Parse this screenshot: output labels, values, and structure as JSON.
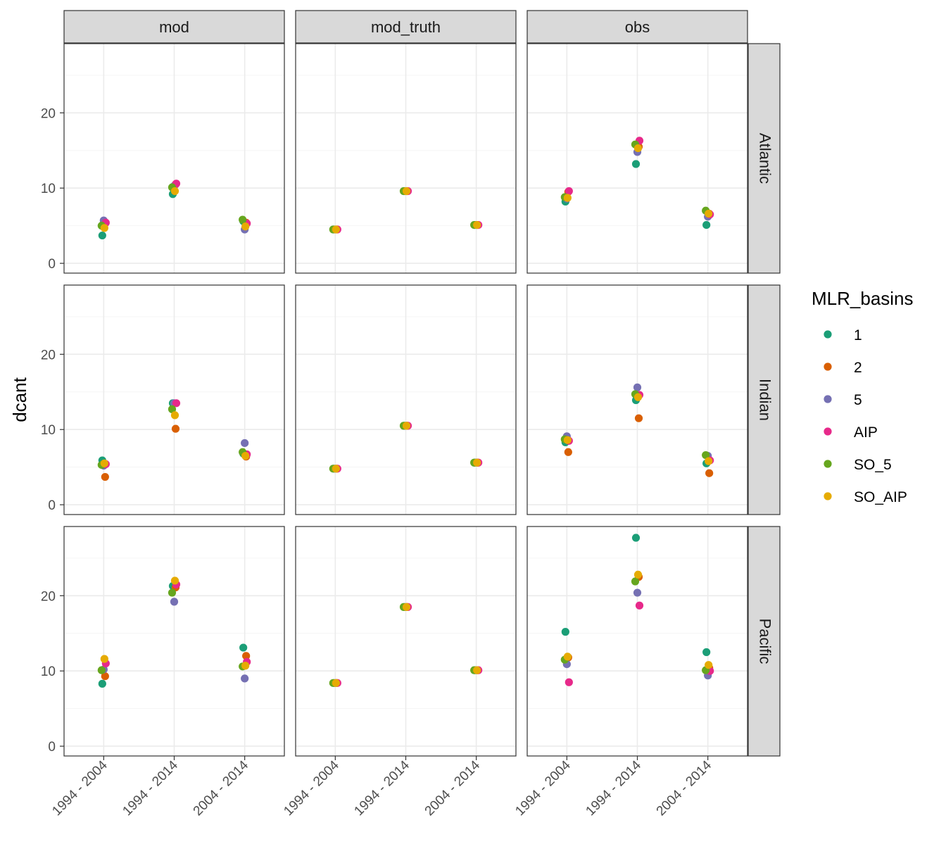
{
  "colors": {
    "1": "#1b9e77",
    "2": "#d95f02",
    "5": "#7570b3",
    "AIP": "#e7298a",
    "SO_5": "#66a61e",
    "SO_AIP": "#e6ab02",
    "strip_fill": "#d9d9d9",
    "panel_border": "#333333",
    "grid_major": "#ebebeb",
    "grid_minor": "#f5f5f5"
  },
  "chart_data": {
    "type": "scatter",
    "title": "",
    "xlabel": "",
    "ylabel": "dcant",
    "ylim": [
      -1.3,
      29.2
    ],
    "yticks": [
      0,
      10,
      20
    ],
    "y_minor_ticks": [
      5,
      15,
      25
    ],
    "categories": [
      "1994 - 2004",
      "1994 - 2014",
      "2004 - 2014"
    ],
    "columns": [
      "mod",
      "mod_truth",
      "obs"
    ],
    "rows": [
      "Atlantic",
      "Indian",
      "Pacific"
    ],
    "grid": true,
    "legend": {
      "title": "MLR_basins",
      "position": "right",
      "entries": [
        "1",
        "2",
        "5",
        "AIP",
        "SO_5",
        "SO_AIP"
      ]
    },
    "series_names": [
      "1",
      "2",
      "5",
      "AIP",
      "SO_5",
      "SO_AIP"
    ],
    "panels": {
      "Atlantic": {
        "mod": {
          "1": [
            3.7,
            9.2,
            5.6
          ],
          "2": [
            5.3,
            10.5,
            5.4
          ],
          "5": [
            5.7,
            10.3,
            4.5
          ],
          "AIP": [
            5.4,
            10.6,
            5.3
          ],
          "SO_5": [
            5.0,
            10.1,
            5.8
          ],
          "SO_AIP": [
            4.7,
            9.6,
            4.9
          ]
        },
        "mod_truth": {
          "1": [
            4.5,
            9.6,
            5.1
          ],
          "2": [
            4.5,
            9.6,
            5.1
          ],
          "5": [
            4.5,
            9.6,
            5.1
          ],
          "AIP": [
            4.5,
            9.6,
            5.1
          ],
          "SO_5": [
            4.5,
            9.6,
            5.1
          ],
          "SO_AIP": [
            4.5,
            9.6,
            5.1
          ]
        },
        "obs": {
          "1": [
            8.2,
            13.2,
            5.1
          ],
          "2": [
            9.5,
            15.5,
            6.6
          ],
          "5": [
            8.6,
            14.8,
            6.2
          ],
          "AIP": [
            9.6,
            16.3,
            6.5
          ],
          "SO_5": [
            8.8,
            15.8,
            7.0
          ],
          "SO_AIP": [
            8.7,
            15.3,
            6.6
          ]
        }
      },
      "Indian": {
        "mod": {
          "1": [
            5.9,
            13.5,
            6.8
          ],
          "2": [
            3.7,
            10.1,
            6.4
          ],
          "5": [
            5.2,
            13.5,
            8.2
          ],
          "AIP": [
            5.4,
            13.5,
            6.7
          ],
          "SO_5": [
            5.3,
            12.7,
            7.0
          ],
          "SO_AIP": [
            5.5,
            11.9,
            6.5
          ]
        },
        "mod_truth": {
          "1": [
            4.8,
            10.5,
            5.6
          ],
          "2": [
            4.8,
            10.5,
            5.6
          ],
          "5": [
            4.8,
            10.5,
            5.6
          ],
          "AIP": [
            4.8,
            10.5,
            5.6
          ],
          "SO_5": [
            4.8,
            10.5,
            5.6
          ],
          "SO_AIP": [
            4.8,
            10.5,
            5.6
          ]
        },
        "obs": {
          "1": [
            8.3,
            13.9,
            5.5
          ],
          "2": [
            7.0,
            11.5,
            4.2
          ],
          "5": [
            9.1,
            15.6,
            6.5
          ],
          "AIP": [
            8.5,
            14.6,
            5.9
          ],
          "SO_5": [
            8.7,
            14.7,
            6.6
          ],
          "SO_AIP": [
            8.6,
            14.3,
            5.8
          ]
        }
      },
      "Pacific": {
        "mod": {
          "1": [
            8.3,
            21.3,
            13.1
          ],
          "2": [
            9.3,
            21.1,
            12.0
          ],
          "5": [
            10.2,
            19.2,
            9.0
          ],
          "AIP": [
            11.0,
            21.5,
            11.2
          ],
          "SO_5": [
            10.1,
            20.4,
            10.6
          ],
          "SO_AIP": [
            11.6,
            22.0,
            10.7
          ]
        },
        "mod_truth": {
          "1": [
            8.4,
            18.5,
            10.1
          ],
          "2": [
            8.4,
            18.5,
            10.1
          ],
          "5": [
            8.4,
            18.5,
            10.1
          ],
          "AIP": [
            8.4,
            18.5,
            10.1
          ],
          "SO_5": [
            8.4,
            18.5,
            10.1
          ],
          "SO_AIP": [
            8.4,
            18.5,
            10.1
          ]
        },
        "obs": {
          "1": [
            15.2,
            27.7,
            12.5
          ],
          "2": [
            11.8,
            22.5,
            10.4
          ],
          "5": [
            10.9,
            20.4,
            9.4
          ],
          "AIP": [
            8.5,
            18.7,
            10.0
          ],
          "SO_5": [
            11.5,
            21.9,
            10.1
          ],
          "SO_AIP": [
            11.9,
            22.8,
            10.8
          ]
        }
      }
    }
  }
}
